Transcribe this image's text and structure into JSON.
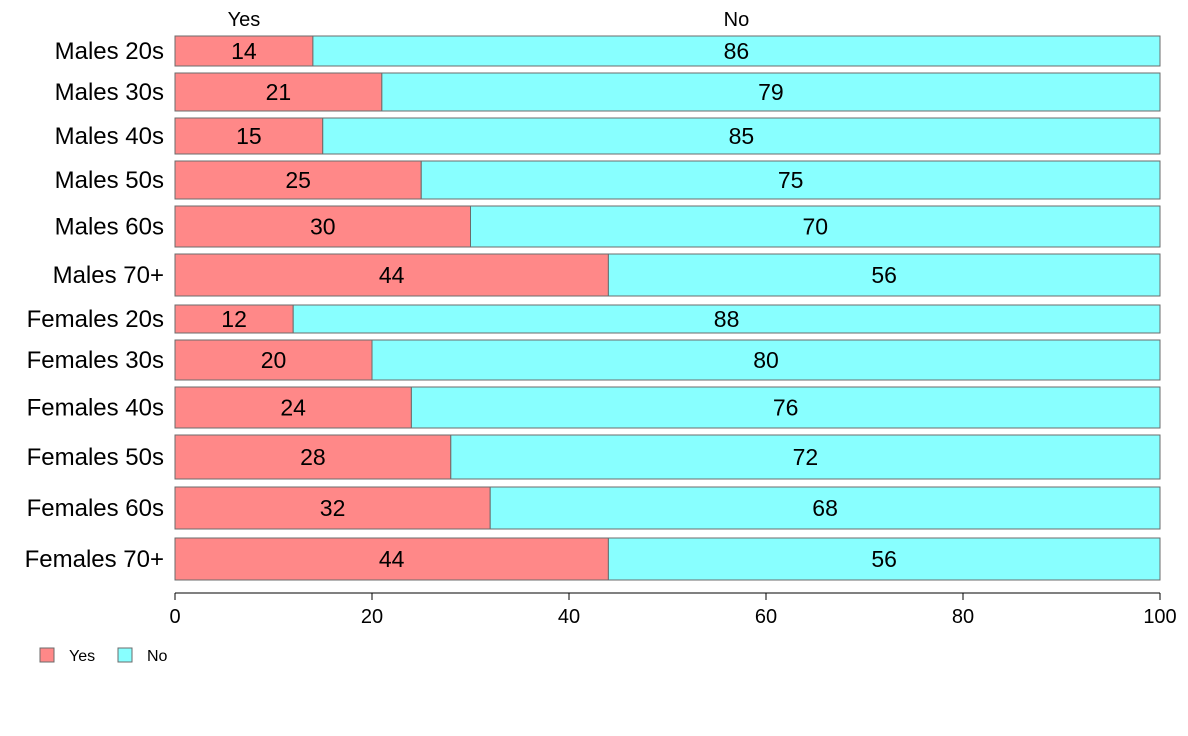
{
  "chart_data": {
    "type": "bar",
    "orientation": "horizontal",
    "stacked": true,
    "categories": [
      "Males 20s",
      "Males 30s",
      "Males 40s",
      "Males 50s",
      "Males 60s",
      "Males 70+",
      "Females 20s",
      "Females 30s",
      "Females 40s",
      "Females 50s",
      "Females 60s",
      "Females 70+"
    ],
    "series": [
      {
        "name": "Yes",
        "color": "#ff8888",
        "values": [
          14,
          21,
          15,
          25,
          30,
          44,
          12,
          20,
          24,
          28,
          32,
          44
        ]
      },
      {
        "name": "No",
        "color": "#88ffff",
        "values": [
          86,
          79,
          85,
          75,
          70,
          56,
          88,
          80,
          76,
          72,
          68,
          56
        ]
      }
    ],
    "column_headers": [
      "Yes",
      "No"
    ],
    "xlim": [
      0,
      100
    ],
    "xticks": [
      0,
      20,
      40,
      60,
      80,
      100
    ],
    "grid": false,
    "legend": {
      "position": "bottom-left",
      "items": [
        "Yes",
        "No"
      ]
    },
    "title": "",
    "xlabel": "",
    "ylabel": ""
  }
}
